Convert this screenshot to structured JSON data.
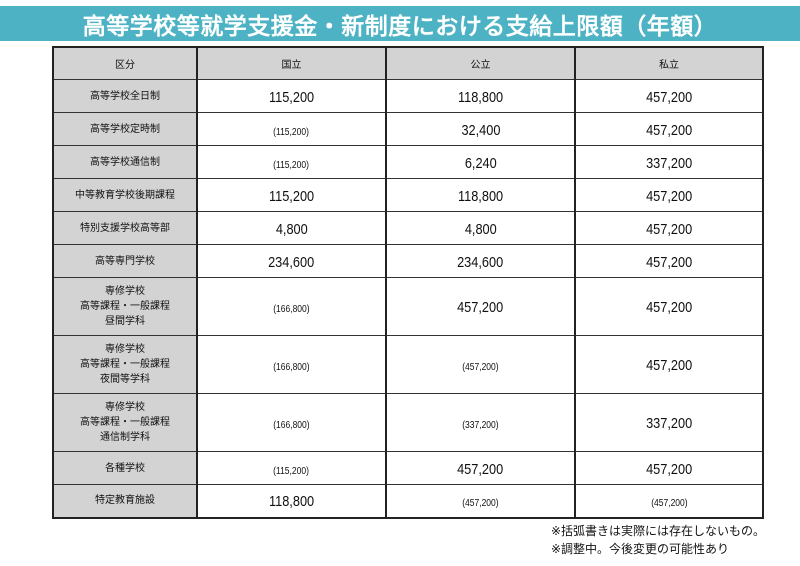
{
  "title": "高等学校等就学支援金・新制度における支給上限額（年額）",
  "colors": {
    "title_bar": "#4db3c4",
    "header_bg": "#d3d3d3",
    "border": "#222222"
  },
  "table": {
    "headers": [
      "区分",
      "国立",
      "公立",
      "私立"
    ],
    "rows": [
      {
        "category": "高等学校全日制",
        "national": "115,200",
        "public": "118,800",
        "private": "457,200",
        "national_paren": false,
        "public_paren": false,
        "private_paren": false
      },
      {
        "category": "高等学校定時制",
        "national": "(115,200)",
        "public": "32,400",
        "private": "457,200",
        "national_paren": true,
        "public_paren": false,
        "private_paren": false
      },
      {
        "category": "高等学校通信制",
        "national": "(115,200)",
        "public": "6,240",
        "private": "337,200",
        "national_paren": true,
        "public_paren": false,
        "private_paren": false
      },
      {
        "category": "中等教育学校後期課程",
        "national": "115,200",
        "public": "118,800",
        "private": "457,200",
        "national_paren": false,
        "public_paren": false,
        "private_paren": false
      },
      {
        "category": "特別支援学校高等部",
        "national": "4,800",
        "public": "4,800",
        "private": "457,200",
        "national_paren": false,
        "public_paren": false,
        "private_paren": false
      },
      {
        "category": "高等専門学校",
        "national": "234,600",
        "public": "234,600",
        "private": "457,200",
        "national_paren": false,
        "public_paren": false,
        "private_paren": false
      },
      {
        "category_lines": [
          "専修学校",
          "高等課程・一般課程",
          "昼間学科"
        ],
        "national": "(166,800)",
        "public": "457,200",
        "private": "457,200",
        "national_paren": true,
        "public_paren": false,
        "private_paren": false
      },
      {
        "category_lines": [
          "専修学校",
          "高等課程・一般課程",
          "夜間等学科"
        ],
        "national": "(166,800)",
        "public": "(457,200)",
        "private": "457,200",
        "national_paren": true,
        "public_paren": true,
        "private_paren": false
      },
      {
        "category_lines": [
          "専修学校",
          "高等課程・一般課程",
          "通信制学科"
        ],
        "national": "(166,800)",
        "public": "(337,200)",
        "private": "337,200",
        "national_paren": true,
        "public_paren": true,
        "private_paren": false
      },
      {
        "category": "各種学校",
        "national": "(115,200)",
        "public": "457,200",
        "private": "457,200",
        "national_paren": true,
        "public_paren": false,
        "private_paren": false
      },
      {
        "category": "特定教育施設",
        "national": "118,800",
        "public": "(457,200)",
        "private": "(457,200)",
        "national_paren": false,
        "public_paren": true,
        "private_paren": true
      }
    ]
  },
  "notes": [
    "※括弧書きは実際には存在しないもの。",
    "※調整中。今後変更の可能性あり"
  ]
}
